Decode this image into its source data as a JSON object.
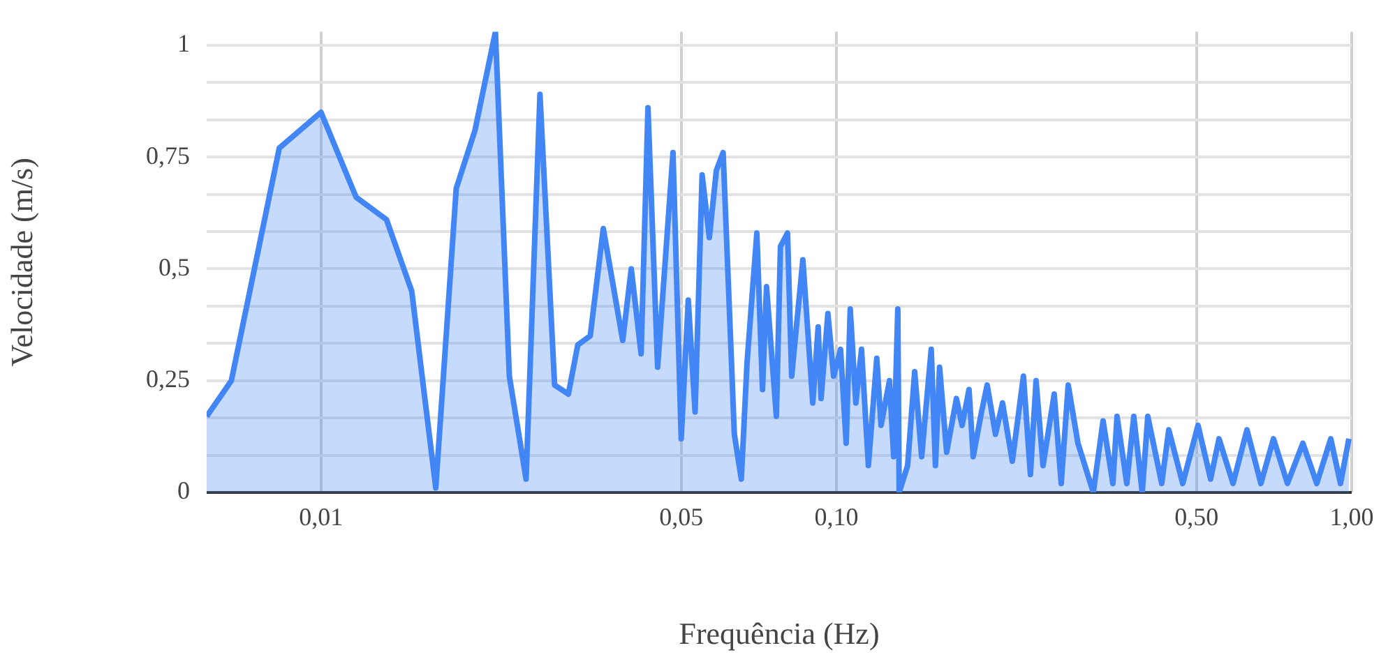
{
  "chart_data": {
    "type": "area",
    "xlabel": "Frequência (Hz)",
    "ylabel": "Velocidade (m/s)",
    "log": "x",
    "xlim": [
      0.006,
      1
    ],
    "xticks": [
      {
        "value": 0.01,
        "label": "0,01"
      },
      {
        "value": 0.05,
        "label": "0,05"
      },
      {
        "value": 0.1,
        "label": "0,10"
      },
      {
        "value": 0.5,
        "label": "0,50"
      },
      {
        "value": 1,
        "label": "1,00"
      }
    ],
    "ylim": [
      0,
      1.03
    ],
    "yticks": [
      {
        "value": 0,
        "label": "0"
      },
      {
        "value": 0.0833,
        "label": null
      },
      {
        "value": 0.1667,
        "label": null
      },
      {
        "value": 0.25,
        "label": "0,25"
      },
      {
        "value": 0.3333,
        "label": null
      },
      {
        "value": 0.4167,
        "label": null
      },
      {
        "value": 0.5,
        "label": "0,5"
      },
      {
        "value": 0.5833,
        "label": null
      },
      {
        "value": 0.6667,
        "label": null
      },
      {
        "value": 0.75,
        "label": "0,75"
      },
      {
        "value": 0.8333,
        "label": null
      },
      {
        "value": 0.9167,
        "label": null
      },
      {
        "value": 1,
        "label": "1"
      }
    ],
    "grid": true,
    "legend": false,
    "marker": "none",
    "line_style": "solid",
    "series": [
      {
        "color": "#4285f4",
        "x": [
          0.006,
          0.0067,
          0.0083,
          0.01,
          0.0117,
          0.0134,
          0.015,
          0.0167,
          0.0183,
          0.0199,
          0.0218,
          0.0232,
          0.025,
          0.0266,
          0.0284,
          0.0302,
          0.0315,
          0.0333,
          0.0353,
          0.0385,
          0.04,
          0.0418,
          0.0431,
          0.045,
          0.0482,
          0.05,
          0.0516,
          0.0532,
          0.0549,
          0.0567,
          0.0585,
          0.0603,
          0.0634,
          0.0654,
          0.0671,
          0.0701,
          0.0719,
          0.0732,
          0.0765,
          0.0779,
          0.0804,
          0.0819,
          0.0861,
          0.09,
          0.0922,
          0.0934,
          0.0963,
          0.0988,
          0.1019,
          0.1045,
          0.1064,
          0.1091,
          0.1119,
          0.1154,
          0.1198,
          0.1221,
          0.1268,
          0.1292,
          0.1316,
          0.1324,
          0.1375,
          0.1419,
          0.1464,
          0.1528,
          0.1557,
          0.1586,
          0.1637,
          0.171,
          0.1754,
          0.1809,
          0.1843,
          0.1913,
          0.1962,
          0.2036,
          0.2101,
          0.2195,
          0.2307,
          0.238,
          0.2441,
          0.2518,
          0.2647,
          0.2731,
          0.2818,
          0.2943,
          0.3152,
          0.3293,
          0.344,
          0.3505,
          0.3661,
          0.3777,
          0.3922,
          0.4021,
          0.4279,
          0.4416,
          0.47,
          0.5033,
          0.5324,
          0.5527,
          0.5884,
          0.6263,
          0.6665,
          0.705,
          0.7505,
          0.804,
          0.8555,
          0.9107,
          0.9512,
          0.9876
        ],
        "values": [
          0.17,
          0.25,
          0.77,
          0.85,
          0.66,
          0.61,
          0.45,
          0.01,
          0.68,
          0.81,
          1.03,
          0.26,
          0.03,
          0.89,
          0.24,
          0.22,
          0.33,
          0.35,
          0.59,
          0.34,
          0.5,
          0.31,
          0.86,
          0.28,
          0.76,
          0.12,
          0.43,
          0.18,
          0.71,
          0.57,
          0.72,
          0.76,
          0.13,
          0.03,
          0.29,
          0.58,
          0.23,
          0.46,
          0.17,
          0.55,
          0.58,
          0.26,
          0.52,
          0.2,
          0.37,
          0.21,
          0.4,
          0.26,
          0.32,
          0.11,
          0.41,
          0.2,
          0.32,
          0.06,
          0.3,
          0.15,
          0.25,
          0.08,
          0.41,
          0,
          0.06,
          0.27,
          0.08,
          0.32,
          0.06,
          0.28,
          0.09,
          0.21,
          0.15,
          0.23,
          0.08,
          0.18,
          0.24,
          0.13,
          0.2,
          0.07,
          0.26,
          0.04,
          0.25,
          0.06,
          0.22,
          0.02,
          0.24,
          0.11,
          0,
          0.16,
          0.02,
          0.17,
          0.02,
          0.17,
          0,
          0.17,
          0.02,
          0.14,
          0.02,
          0.15,
          0.03,
          0.12,
          0.02,
          0.14,
          0.02,
          0.12,
          0.02,
          0.11,
          0.02,
          0.12,
          0.02,
          0.12
        ]
      }
    ]
  }
}
